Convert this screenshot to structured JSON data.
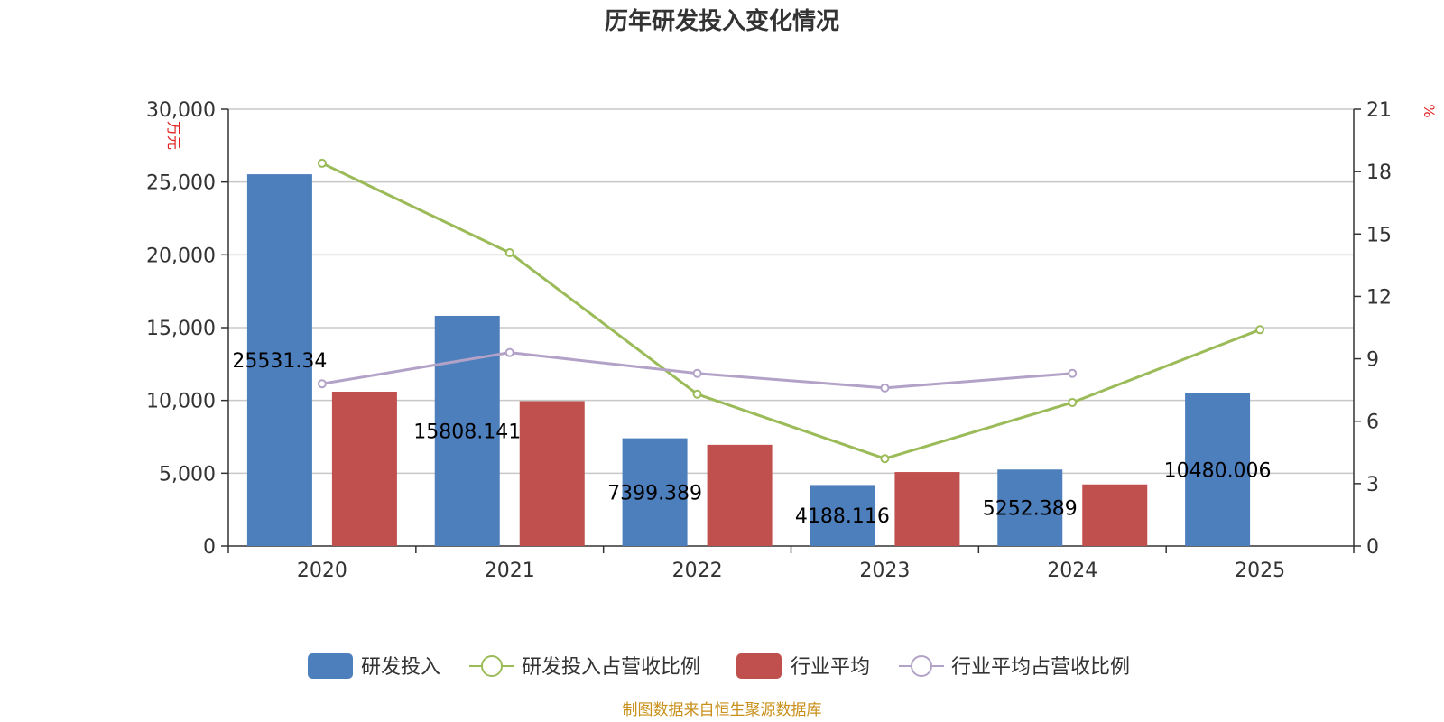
{
  "chart_data": {
    "type": "bar",
    "title": "历年研发投入变化情况",
    "categories": [
      "2020",
      "2021",
      "2022",
      "2023",
      "2024",
      "2025"
    ],
    "left_axis": {
      "unit": "万元",
      "ylim": [
        0,
        30000
      ],
      "ticks": [
        0,
        5000,
        10000,
        15000,
        20000,
        25000,
        30000
      ],
      "tick_labels": [
        "0",
        "5,000",
        "10,000",
        "15,000",
        "20,000",
        "25,000",
        "30,000"
      ]
    },
    "right_axis": {
      "unit": "%",
      "ylim": [
        0,
        21
      ],
      "ticks": [
        0,
        3,
        6,
        9,
        12,
        15,
        18,
        21
      ],
      "tick_labels": [
        "0",
        "3",
        "6",
        "9",
        "12",
        "15",
        "18",
        "21"
      ]
    },
    "series": [
      {
        "name": "研发投入",
        "kind": "bar",
        "axis": "left",
        "color": "#4e7fbd",
        "values": [
          25531.34,
          15808.141,
          7399.389,
          4188.116,
          5252.389,
          10480.006
        ],
        "labels": [
          "25531.34",
          "15808.141",
          "7399.389",
          "4188.116",
          "5252.389",
          "10480.006"
        ]
      },
      {
        "name": "研发投入占营收比例",
        "kind": "line",
        "axis": "right",
        "color": "#9bbb59",
        "values": [
          18.4,
          14.1,
          7.3,
          4.2,
          6.9,
          10.4
        ]
      },
      {
        "name": "行业平均",
        "kind": "bar",
        "axis": "left",
        "color": "#c0504d",
        "values": [
          10600,
          9950,
          6950,
          5080,
          4230,
          null
        ]
      },
      {
        "name": "行业平均占营收比例",
        "kind": "line",
        "axis": "right",
        "color": "#b3a2c7",
        "values": [
          7.8,
          9.3,
          8.3,
          7.6,
          8.3,
          null
        ]
      }
    ],
    "legend_position": "bottom-center",
    "grid": true
  },
  "footer": {
    "source": "制图数据来自恒生聚源数据库"
  }
}
